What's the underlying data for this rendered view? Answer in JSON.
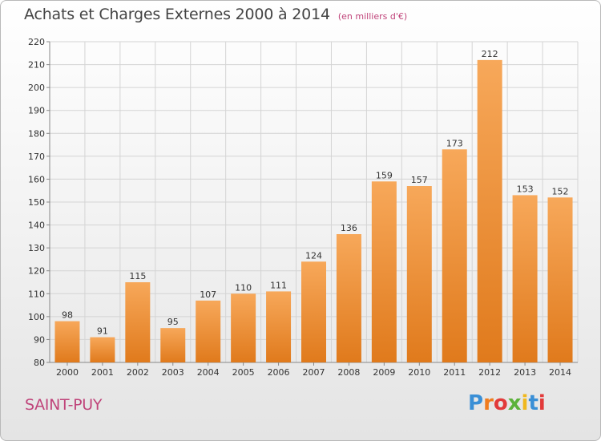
{
  "title": "Achats et Charges Externes 2000 à 2014",
  "subtitle": "(en milliers d'€)",
  "commune": "SAINT-PUY",
  "logo": {
    "text": "Proxiti",
    "letters": [
      {
        "char": "P",
        "color": "#3a8fd6"
      },
      {
        "char": "r",
        "color": "#f07c1e"
      },
      {
        "char": "o",
        "color": "#e23a3a"
      },
      {
        "char": "x",
        "color": "#5bb23a"
      },
      {
        "char": "i",
        "color": "#f0b81e"
      },
      {
        "char": "t",
        "color": "#3a8fd6"
      },
      {
        "char": "i",
        "color": "#e23a3a"
      }
    ]
  },
  "colors": {
    "bar_top": "#f7a85a",
    "bar_bottom": "#e07a1c",
    "grid": "#d4d4d4"
  },
  "chart_data": {
    "type": "bar",
    "categories": [
      "2000",
      "2001",
      "2002",
      "2003",
      "2004",
      "2005",
      "2006",
      "2007",
      "2008",
      "2009",
      "2010",
      "2011",
      "2012",
      "2013",
      "2014"
    ],
    "values": [
      98,
      91,
      115,
      95,
      107,
      110,
      111,
      124,
      136,
      159,
      157,
      173,
      212,
      153,
      152
    ],
    "ylim": [
      80,
      220
    ],
    "yticks": [
      80,
      90,
      100,
      110,
      120,
      130,
      140,
      150,
      160,
      170,
      180,
      190,
      200,
      210,
      220
    ],
    "grid": true
  }
}
